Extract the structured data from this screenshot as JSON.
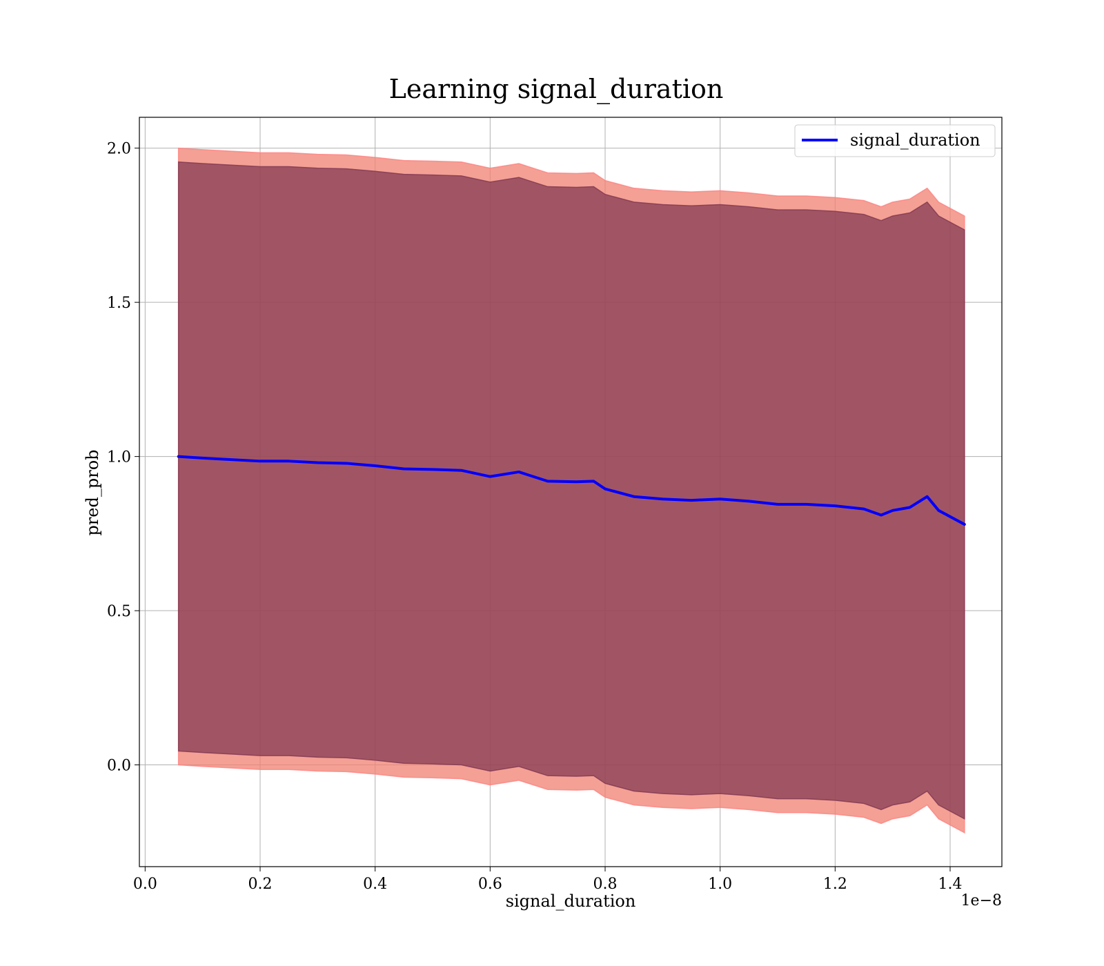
{
  "chart_data": {
    "type": "line",
    "title": "Learning signal_duration",
    "xlabel": "signal_duration",
    "ylabel": "pred_prob",
    "x_offset_label": "1e−8",
    "xlim": [
      -0.01,
      1.49
    ],
    "ylim": [
      -0.33,
      2.1
    ],
    "x_ticks": [
      0.0,
      0.2,
      0.4,
      0.6,
      0.8,
      1.0,
      1.2,
      1.4
    ],
    "x_tick_labels": [
      "0.0",
      "0.2",
      "0.4",
      "0.6",
      "0.8",
      "1.0",
      "1.2",
      "1.4"
    ],
    "y_ticks": [
      0.0,
      0.5,
      1.0,
      1.5,
      2.0
    ],
    "y_tick_labels": [
      "0.0",
      "0.5",
      "1.0",
      "1.5",
      "2.0"
    ],
    "grid": true,
    "legend_position": "top-right",
    "x": [
      0.058,
      0.1,
      0.15,
      0.2,
      0.25,
      0.3,
      0.35,
      0.4,
      0.45,
      0.5,
      0.55,
      0.6,
      0.65,
      0.7,
      0.75,
      0.78,
      0.8,
      0.85,
      0.9,
      0.95,
      1.0,
      1.05,
      1.1,
      1.15,
      1.2,
      1.25,
      1.28,
      1.3,
      1.33,
      1.36,
      1.38,
      1.425
    ],
    "series": [
      {
        "name": "signal_duration",
        "color": "#0000ff",
        "values": [
          1.0,
          0.995,
          0.99,
          0.985,
          0.985,
          0.98,
          0.978,
          0.97,
          0.96,
          0.958,
          0.955,
          0.935,
          0.95,
          0.92,
          0.918,
          0.92,
          0.895,
          0.87,
          0.862,
          0.858,
          0.862,
          0.855,
          0.845,
          0.845,
          0.84,
          0.83,
          0.81,
          0.825,
          0.835,
          0.87,
          0.825,
          0.78
        ]
      }
    ],
    "bands": [
      {
        "color": "#f08070",
        "edge_color": "#ff8080",
        "lower": [
          0.0,
          -0.005,
          -0.01,
          -0.015,
          -0.015,
          -0.02,
          -0.022,
          -0.03,
          -0.04,
          -0.042,
          -0.045,
          -0.065,
          -0.05,
          -0.08,
          -0.082,
          -0.08,
          -0.105,
          -0.13,
          -0.138,
          -0.142,
          -0.138,
          -0.145,
          -0.155,
          -0.155,
          -0.16,
          -0.17,
          -0.19,
          -0.175,
          -0.165,
          -0.13,
          -0.175,
          -0.22
        ],
        "upper": [
          2.0,
          1.995,
          1.99,
          1.985,
          1.985,
          1.98,
          1.978,
          1.97,
          1.96,
          1.958,
          1.955,
          1.935,
          1.95,
          1.92,
          1.918,
          1.92,
          1.895,
          1.87,
          1.862,
          1.858,
          1.862,
          1.855,
          1.845,
          1.845,
          1.84,
          1.83,
          1.81,
          1.825,
          1.835,
          1.87,
          1.825,
          1.78
        ]
      },
      {
        "color": "#7e3550",
        "edge_color": "#7e3550",
        "lower": [
          0.045,
          0.04,
          0.035,
          0.03,
          0.03,
          0.025,
          0.023,
          0.015,
          0.005,
          0.003,
          0.0,
          -0.02,
          -0.005,
          -0.035,
          -0.037,
          -0.035,
          -0.06,
          -0.085,
          -0.093,
          -0.097,
          -0.093,
          -0.1,
          -0.11,
          -0.11,
          -0.115,
          -0.125,
          -0.145,
          -0.13,
          -0.12,
          -0.085,
          -0.13,
          -0.175
        ],
        "upper": [
          1.955,
          1.95,
          1.945,
          1.94,
          1.94,
          1.935,
          1.933,
          1.925,
          1.915,
          1.913,
          1.91,
          1.89,
          1.905,
          1.875,
          1.873,
          1.875,
          1.85,
          1.825,
          1.817,
          1.813,
          1.817,
          1.81,
          1.8,
          1.8,
          1.795,
          1.785,
          1.765,
          1.78,
          1.79,
          1.825,
          1.78,
          1.735
        ]
      }
    ]
  }
}
